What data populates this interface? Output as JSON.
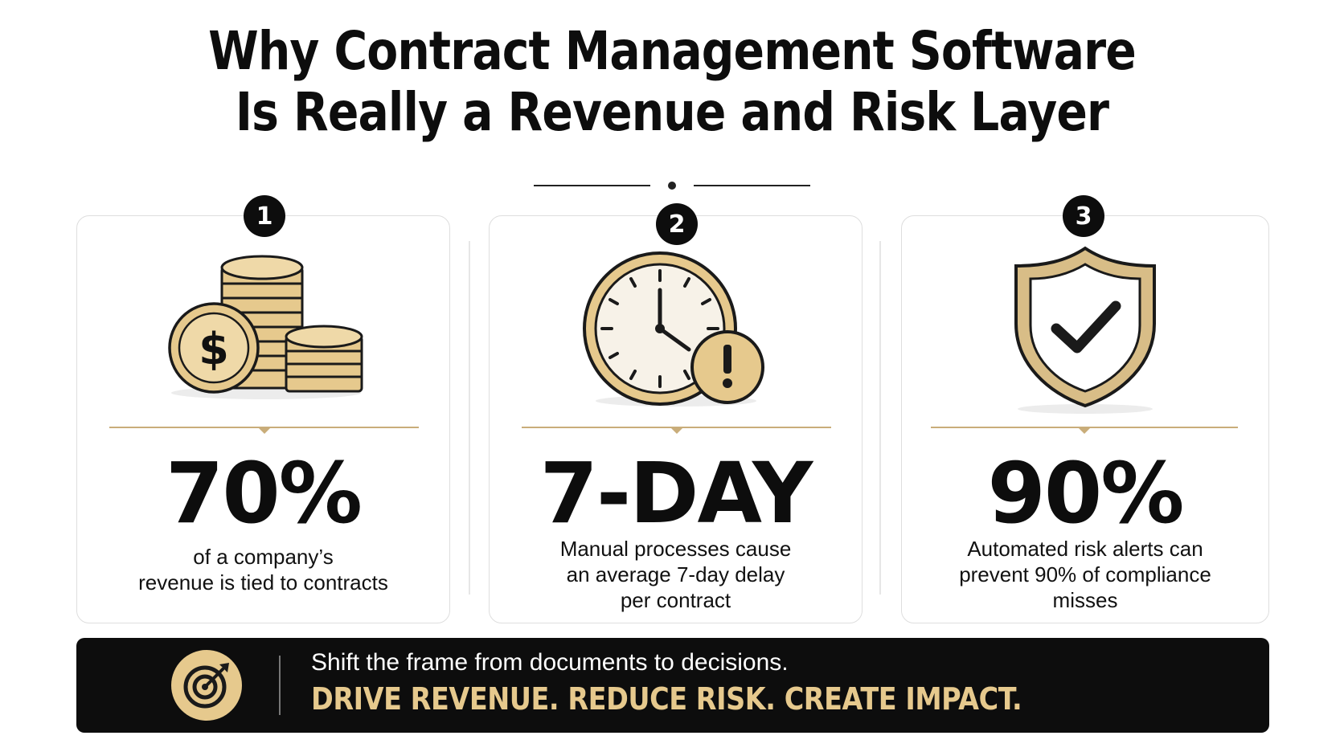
{
  "title": {
    "line1": "Why Contract Management Software",
    "line2": "Is Really a Revenue and Risk Layer"
  },
  "cards": [
    {
      "number": "1",
      "icon": "coins-dollar-icon",
      "stat": "70%",
      "description_lines": [
        "of a company’s",
        "revenue is tied to contracts"
      ]
    },
    {
      "number": "2",
      "icon": "clock-alert-icon",
      "stat": "7-DAY",
      "description_lines": [
        "Manual processes cause",
        "an average 7-day delay",
        "per contract"
      ]
    },
    {
      "number": "3",
      "icon": "shield-check-icon",
      "stat": "90%",
      "description_lines": [
        "Automated risk alerts can",
        "prevent 90% of compliance",
        "misses"
      ]
    }
  ],
  "banner": {
    "icon": "target-arrow-icon",
    "line1": "Shift the frame from documents to decisions.",
    "line2": "DRIVE REVENUE. REDUCE RISK. CREATE IMPACT."
  },
  "colors": {
    "accent_gold": "#e6c98d",
    "gold_stroke": "#c9ad7a",
    "dark": "#0d0d0d",
    "background": "#ffffff"
  }
}
